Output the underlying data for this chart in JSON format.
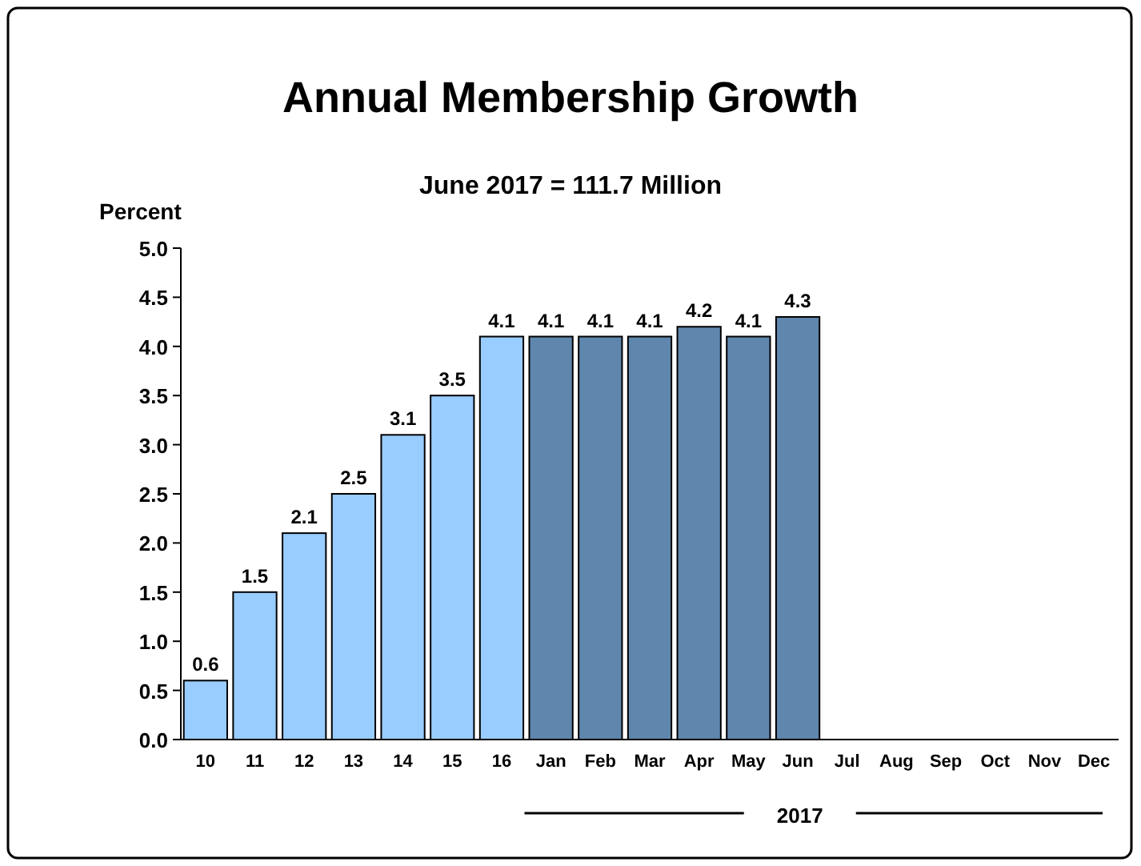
{
  "chart_data": {
    "type": "bar",
    "title": "Annual Membership Growth",
    "subtitle": "June 2017 = 111.7 Million",
    "ylabel": "Percent",
    "categories": [
      "10",
      "11",
      "12",
      "13",
      "14",
      "15",
      "16",
      "Jan",
      "Feb",
      "Mar",
      "Apr",
      "May",
      "Jun",
      "Jul",
      "Aug",
      "Sep",
      "Oct",
      "Nov",
      "Dec"
    ],
    "values": [
      0.6,
      1.5,
      2.1,
      2.5,
      3.1,
      3.5,
      4.1,
      4.1,
      4.1,
      4.1,
      4.2,
      4.1,
      4.3,
      null,
      null,
      null,
      null,
      null,
      null
    ],
    "colors": [
      "#99ccff",
      "#99ccff",
      "#99ccff",
      "#99ccff",
      "#99ccff",
      "#99ccff",
      "#99ccff",
      "#5f86ad",
      "#5f86ad",
      "#5f86ad",
      "#5f86ad",
      "#5f86ad",
      "#5f86ad",
      null,
      null,
      null,
      null,
      null,
      null
    ],
    "ylim": [
      0,
      5
    ],
    "yticks": [
      {
        "value": 0,
        "label": "0.0"
      },
      {
        "value": 0.5,
        "label": "0.5"
      },
      {
        "value": 1,
        "label": "1.0"
      },
      {
        "value": 1.5,
        "label": "1.5"
      },
      {
        "value": 2,
        "label": "2.0"
      },
      {
        "value": 2.5,
        "label": "2.5"
      },
      {
        "value": 3,
        "label": "3.0"
      },
      {
        "value": 3.5,
        "label": "3.5"
      },
      {
        "value": 4,
        "label": "4.0"
      },
      {
        "value": 4.5,
        "label": "4.5"
      },
      {
        "value": 5,
        "label": "5.0"
      }
    ],
    "data_labels": true,
    "annotations": [
      "2017"
    ]
  }
}
